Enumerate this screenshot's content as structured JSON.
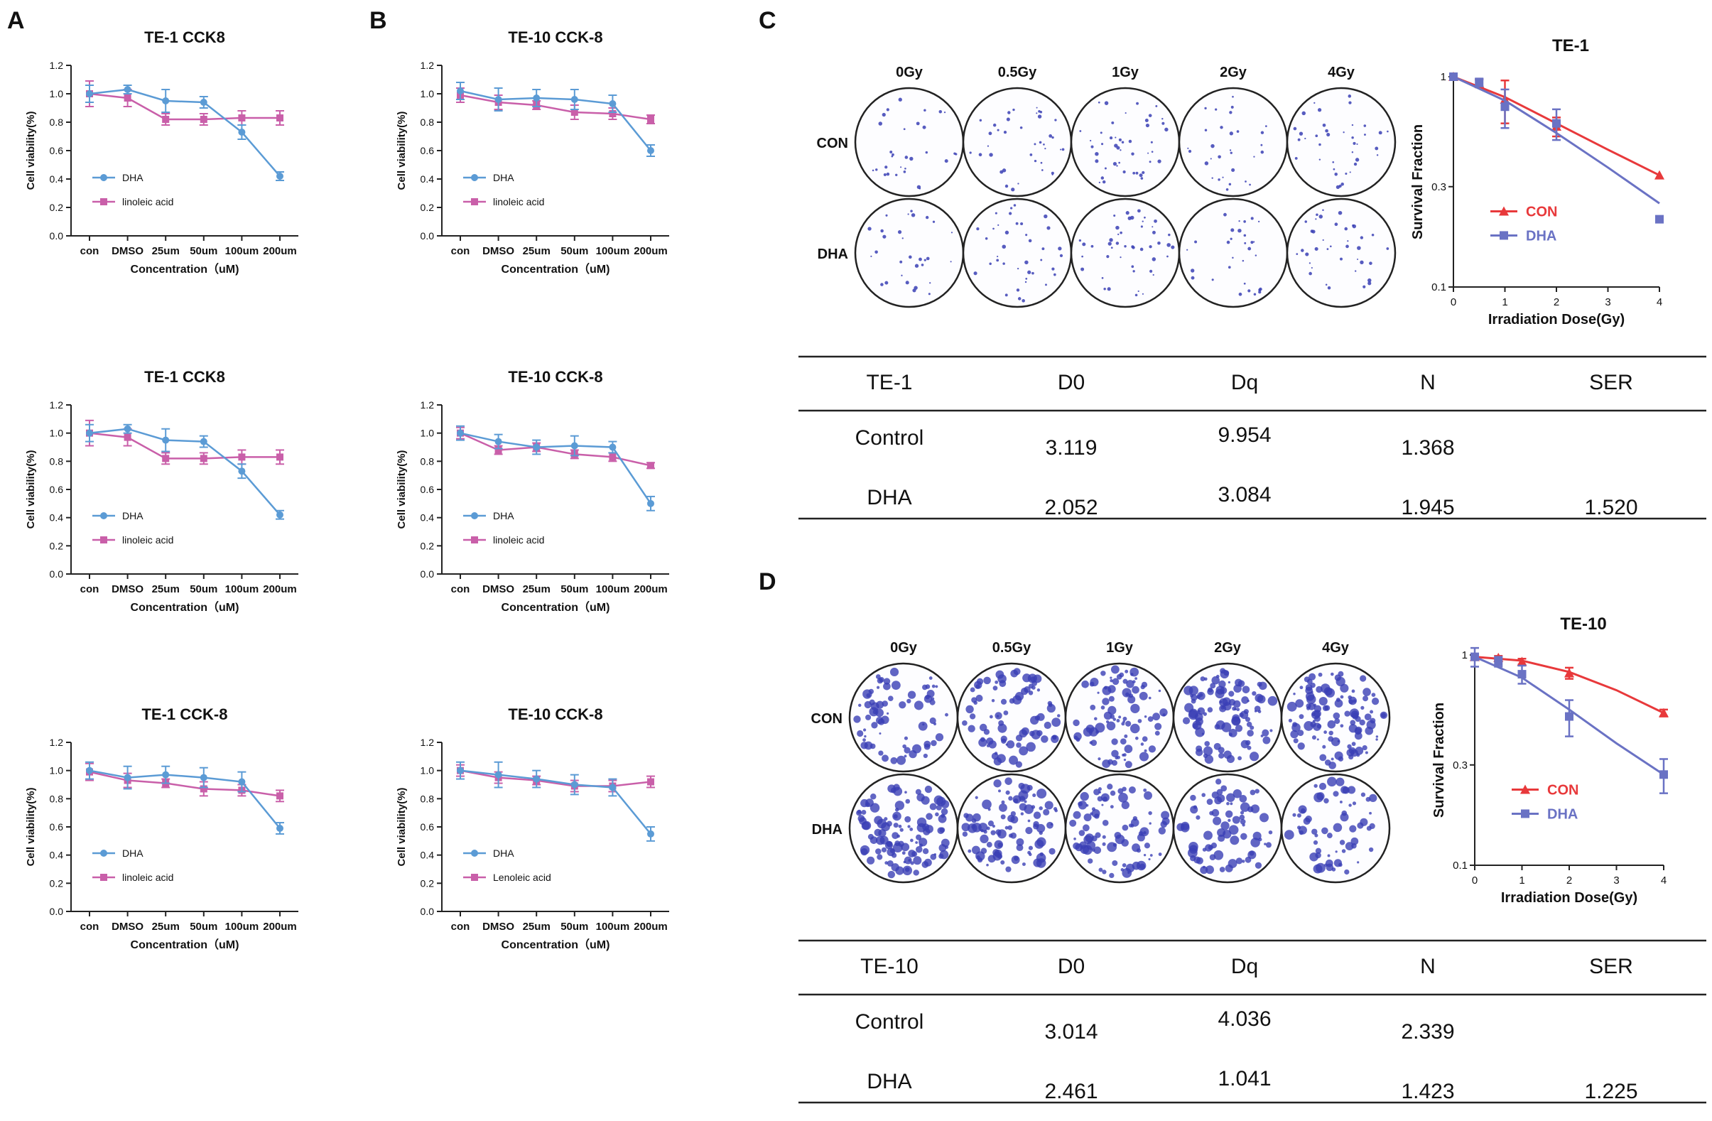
{
  "panel_labels": [
    "A",
    "B",
    "C",
    "D"
  ],
  "colors": {
    "dha_line": "#5b9bd5",
    "linoleic_line": "#c95fa9",
    "con_survival": "#e8393b",
    "dha_survival": "#6a72c4",
    "colony_blue": "#3a3fb5"
  },
  "chart_data": [
    {
      "type": "line",
      "panel": "A",
      "title": "TE-1 CCK8",
      "xlabel": "Concentration（uM)",
      "ylabel": "Cell viability(%)",
      "categories": [
        "con",
        "DMSO",
        "25um",
        "50um",
        "100um",
        "200um"
      ],
      "ylim": [
        0,
        1.2
      ],
      "yticks": [
        "0.0",
        "0.2",
        "0.4",
        "0.6",
        "0.8",
        "1.0",
        "1.2"
      ],
      "series": [
        {
          "name": "DHA",
          "values": [
            1.0,
            1.03,
            0.95,
            0.94,
            0.73,
            0.42
          ],
          "errors": [
            0.06,
            0.03,
            0.08,
            0.04,
            0.05,
            0.03
          ]
        },
        {
          "name": "linoleic acid",
          "values": [
            1.0,
            0.97,
            0.82,
            0.82,
            0.83,
            0.83
          ],
          "errors": [
            0.09,
            0.06,
            0.04,
            0.04,
            0.05,
            0.05
          ]
        }
      ]
    },
    {
      "type": "line",
      "panel": "B",
      "title": "TE-10 CCK-8",
      "xlabel": "Concentration（uM)",
      "ylabel": "Cell viability(%)",
      "categories": [
        "con",
        "DMSO",
        "25um",
        "50um",
        "100um",
        "200um"
      ],
      "ylim": [
        0,
        1.2
      ],
      "yticks": [
        "0.0",
        "0.2",
        "0.4",
        "0.6",
        "0.8",
        "1.0",
        "1.2"
      ],
      "series": [
        {
          "name": "DHA",
          "values": [
            1.02,
            0.96,
            0.97,
            0.96,
            0.93,
            0.6
          ],
          "errors": [
            0.06,
            0.08,
            0.06,
            0.07,
            0.06,
            0.04
          ]
        },
        {
          "name": "linoleic acid",
          "values": [
            0.99,
            0.94,
            0.92,
            0.87,
            0.86,
            0.82
          ],
          "errors": [
            0.05,
            0.05,
            0.03,
            0.05,
            0.04,
            0.03
          ]
        }
      ]
    },
    {
      "type": "line",
      "panel": "A",
      "title": "TE-1 CCK8",
      "xlabel": "Concentration（uM)",
      "ylabel": "Cell viability(%)",
      "categories": [
        "con",
        "DMSO",
        "25um",
        "50um",
        "100um",
        "200um"
      ],
      "ylim": [
        0,
        1.2
      ],
      "yticks": [
        "0.0",
        "0.2",
        "0.4",
        "0.6",
        "0.8",
        "1.0",
        "1.2"
      ],
      "series": [
        {
          "name": "DHA",
          "values": [
            1.0,
            1.03,
            0.95,
            0.94,
            0.73,
            0.42
          ],
          "errors": [
            0.06,
            0.03,
            0.08,
            0.04,
            0.05,
            0.03
          ]
        },
        {
          "name": "linoleic acid",
          "values": [
            1.0,
            0.97,
            0.82,
            0.82,
            0.83,
            0.83
          ],
          "errors": [
            0.09,
            0.06,
            0.04,
            0.04,
            0.05,
            0.05
          ]
        }
      ]
    },
    {
      "type": "line",
      "panel": "B",
      "title": "TE-10 CCK-8",
      "xlabel": "Concentration（uM)",
      "ylabel": "Cell viability(%)",
      "categories": [
        "con",
        "DMSO",
        "25um",
        "50um",
        "100um",
        "200um"
      ],
      "ylim": [
        0,
        1.2
      ],
      "yticks": [
        "0.0",
        "0.2",
        "0.4",
        "0.6",
        "0.8",
        "1.0",
        "1.2"
      ],
      "series": [
        {
          "name": "DHA",
          "values": [
            1.0,
            0.94,
            0.9,
            0.91,
            0.9,
            0.5
          ],
          "errors": [
            0.05,
            0.05,
            0.05,
            0.07,
            0.04,
            0.05
          ]
        },
        {
          "name": "linoleic acid",
          "values": [
            1.0,
            0.88,
            0.9,
            0.85,
            0.83,
            0.77
          ],
          "errors": [
            0.04,
            0.03,
            0.03,
            0.03,
            0.03,
            0.02
          ]
        }
      ]
    },
    {
      "type": "line",
      "panel": "A",
      "title": "TE-1 CCK-8",
      "xlabel": "Concentration（uM)",
      "ylabel": "Cell viability(%)",
      "categories": [
        "con",
        "DMSO",
        "25um",
        "50um",
        "100um",
        "200um"
      ],
      "ylim": [
        0,
        1.2
      ],
      "yticks": [
        "0.0",
        "0.2",
        "0.4",
        "0.6",
        "0.8",
        "1.0",
        "1.2"
      ],
      "series": [
        {
          "name": "DHA",
          "values": [
            1.0,
            0.95,
            0.97,
            0.95,
            0.92,
            0.59
          ],
          "errors": [
            0.06,
            0.08,
            0.06,
            0.07,
            0.07,
            0.04
          ]
        },
        {
          "name": "linoleic acid",
          "values": [
            0.99,
            0.93,
            0.91,
            0.87,
            0.86,
            0.82
          ],
          "errors": [
            0.06,
            0.05,
            0.03,
            0.05,
            0.04,
            0.04
          ]
        }
      ]
    },
    {
      "type": "line",
      "panel": "B",
      "title": "TE-10 CCK-8",
      "xlabel": "Concentration（uM)",
      "ylabel": "Cell viability(%)",
      "categories": [
        "con",
        "DMSO",
        "25um",
        "50um",
        "100um",
        "200um"
      ],
      "ylim": [
        0,
        1.2
      ],
      "yticks": [
        "0.0",
        "0.2",
        "0.4",
        "0.6",
        "0.8",
        "1.0",
        "1.2"
      ],
      "series": [
        {
          "name": "DHA",
          "values": [
            1.0,
            0.97,
            0.94,
            0.9,
            0.88,
            0.55
          ],
          "errors": [
            0.06,
            0.09,
            0.06,
            0.07,
            0.06,
            0.05
          ]
        },
        {
          "name": "Lenoleic acid",
          "values": [
            1.0,
            0.95,
            0.93,
            0.89,
            0.89,
            0.92
          ],
          "errors": [
            0.04,
            0.04,
            0.03,
            0.04,
            0.04,
            0.04
          ]
        }
      ]
    },
    {
      "type": "line",
      "panel": "C",
      "title": "TE-1",
      "xlabel": "Irradiation Dose(Gy)",
      "ylabel": "Survival Fraction",
      "yscale": "log",
      "x": [
        0,
        1,
        2,
        3,
        4
      ],
      "xticks": [
        "0",
        "1",
        "2",
        "3",
        "4"
      ],
      "ylim": [
        0.1,
        1
      ],
      "yticks": [
        "0.1",
        "0.3",
        "1"
      ],
      "series": [
        {
          "name": "CON",
          "points": [
            [
              0,
              1.0
            ],
            [
              0.5,
              0.93
            ],
            [
              1,
              0.78
            ],
            [
              2,
              0.58
            ],
            [
              4,
              0.34
            ]
          ],
          "errors": [
            0.02,
            0.04,
            0.18,
            0.06,
            0.0
          ],
          "curve": [
            [
              0,
              1.0
            ],
            [
              1,
              0.8
            ],
            [
              2,
              0.6
            ],
            [
              3,
              0.45
            ],
            [
              4,
              0.34
            ]
          ]
        },
        {
          "name": "DHA",
          "points": [
            [
              0,
              1.0
            ],
            [
              0.5,
              0.94
            ],
            [
              1,
              0.72
            ],
            [
              2,
              0.6
            ],
            [
              4,
              0.21
            ]
          ],
          "errors": [
            0.02,
            0.04,
            0.15,
            0.1,
            0.0
          ],
          "curve": [
            [
              0,
              1.0
            ],
            [
              1,
              0.77
            ],
            [
              2,
              0.54
            ],
            [
              3,
              0.37
            ],
            [
              4,
              0.25
            ]
          ]
        }
      ]
    },
    {
      "type": "line",
      "panel": "D",
      "title": "TE-10",
      "xlabel": "Irradiation Dose(Gy)",
      "ylabel": "Survival Fraction",
      "yscale": "log",
      "x": [
        0,
        1,
        2,
        3,
        4
      ],
      "xticks": [
        "0",
        "1",
        "2",
        "3",
        "4"
      ],
      "ylim": [
        0.1,
        1
      ],
      "yticks": [
        "0.1",
        "0.3",
        "1"
      ],
      "series": [
        {
          "name": "CON",
          "points": [
            [
              0,
              0.98
            ],
            [
              0.5,
              0.97
            ],
            [
              1,
              0.93
            ],
            [
              2,
              0.82
            ],
            [
              4,
              0.53
            ]
          ],
          "errors": [
            0.03,
            0.02,
            0.03,
            0.05,
            0.02
          ],
          "curve": [
            [
              0,
              0.98
            ],
            [
              1,
              0.94
            ],
            [
              2,
              0.83
            ],
            [
              3,
              0.68
            ],
            [
              4,
              0.53
            ]
          ]
        },
        {
          "name": "DHA",
          "points": [
            [
              0,
              0.98
            ],
            [
              0.5,
              0.93
            ],
            [
              1,
              0.81
            ],
            [
              2,
              0.51
            ],
            [
              4,
              0.27
            ]
          ],
          "errors": [
            0.1,
            0.05,
            0.08,
            0.1,
            0.05
          ],
          "curve": [
            [
              0,
              0.98
            ],
            [
              1,
              0.78
            ],
            [
              2,
              0.55
            ],
            [
              3,
              0.38
            ],
            [
              4,
              0.27
            ]
          ]
        }
      ]
    }
  ],
  "colony": {
    "C": {
      "doses": [
        "0Gy",
        "0.5Gy",
        "1Gy",
        "2Gy",
        "4Gy"
      ],
      "rows": [
        "CON",
        "DHA"
      ]
    },
    "D": {
      "doses": [
        "0Gy",
        "0.5Gy",
        "1Gy",
        "2Gy",
        "4Gy"
      ],
      "rows": [
        "CON",
        "DHA"
      ]
    }
  },
  "tables": {
    "C": {
      "header": [
        "TE-1",
        "D0",
        "Dq",
        "N",
        "SER"
      ],
      "rows": [
        [
          "Control",
          "3.119",
          "9.954",
          "1.368",
          ""
        ],
        [
          "DHA",
          "2.052",
          "3.084",
          "1.945",
          "1.520"
        ]
      ]
    },
    "D": {
      "header": [
        "TE-10",
        "D0",
        "Dq",
        "N",
        "SER"
      ],
      "rows": [
        [
          "Control",
          "3.014",
          "4.036",
          "2.339",
          ""
        ],
        [
          "DHA",
          "2.461",
          "1.041",
          "1.423",
          "1.225"
        ]
      ]
    }
  }
}
